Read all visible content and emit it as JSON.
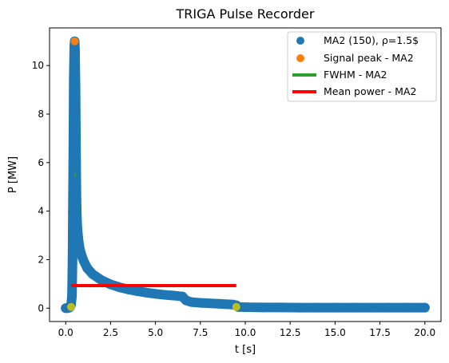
{
  "chart_data": {
    "type": "scatter",
    "title": "TRIGA Pulse Recorder",
    "xlabel": "t [s]",
    "ylabel": "P [MW]",
    "xlim": [
      -0.9,
      20.9
    ],
    "ylim": [
      -0.55,
      11.55
    ],
    "grid": false,
    "legend": {
      "placement": "top-right",
      "entries": [
        {
          "label": "MA2 (150), ρ=1.5$",
          "marker": "dot",
          "color": "#1f77b4"
        },
        {
          "label": "Signal peak - MA2",
          "marker": "dot",
          "color": "#ff7f0e"
        },
        {
          "label": "FWHM - MA2",
          "marker": "line",
          "color": "#2ca02c"
        },
        {
          "label": "Mean power - MA2",
          "marker": "line",
          "color": "#ff0000"
        }
      ]
    },
    "xticks": [
      "0.0",
      "2.5",
      "5.0",
      "7.5",
      "10.0",
      "12.5",
      "15.0",
      "17.5",
      "20.0"
    ],
    "xtick_values": [
      0,
      2.5,
      5,
      7.5,
      10,
      12.5,
      15,
      17.5,
      20
    ],
    "yticks": [
      "0",
      "2",
      "4",
      "6",
      "8",
      "10"
    ],
    "ytick_values": [
      0,
      2,
      4,
      6,
      8,
      10
    ],
    "series": [
      {
        "name": "MA2 (150), ρ=1.5$",
        "color": "#1f77b4",
        "x": [
          0.0,
          0.1,
          0.2,
          0.25,
          0.3,
          0.35,
          0.38,
          0.4,
          0.43,
          0.45,
          0.48,
          0.5,
          0.52,
          0.55,
          0.58,
          0.6,
          0.62,
          0.65,
          0.7,
          0.75,
          0.8,
          0.9,
          1.0,
          1.2,
          1.5,
          2.0,
          2.5,
          3.0,
          3.5,
          4.0,
          4.5,
          5.0,
          5.5,
          6.0,
          6.5,
          6.7,
          7.0,
          7.5,
          8.0,
          8.5,
          9.0,
          9.3,
          9.5,
          9.6,
          10.0,
          11.0,
          12.0,
          13.0,
          14.0,
          15.0,
          16.0,
          17.0,
          18.0,
          19.0,
          20.0
        ],
        "y": [
          0.0,
          0.0,
          0.02,
          0.05,
          0.15,
          0.5,
          2.0,
          4.0,
          7.0,
          9.5,
          10.8,
          11.0,
          10.6,
          9.0,
          6.0,
          4.5,
          3.8,
          3.3,
          2.9,
          2.6,
          2.4,
          2.15,
          1.95,
          1.65,
          1.4,
          1.15,
          0.98,
          0.86,
          0.77,
          0.7,
          0.64,
          0.59,
          0.55,
          0.52,
          0.48,
          0.32,
          0.25,
          0.22,
          0.2,
          0.18,
          0.16,
          0.15,
          0.12,
          0.05,
          0.04,
          0.03,
          0.03,
          0.02,
          0.02,
          0.02,
          0.02,
          0.02,
          0.02,
          0.02,
          0.02
        ]
      },
      {
        "name": "Signal peak - MA2",
        "color": "#ff7f0e",
        "x": [
          0.5
        ],
        "y": [
          11.0
        ]
      }
    ],
    "fwhm": {
      "name": "FWHM - MA2",
      "color": "#2ca02c",
      "x_start": 0.48,
      "x_end": 0.58,
      "y": 5.5
    },
    "mean_power": {
      "name": "Mean power - MA2",
      "color": "#ff0000",
      "x_start": 0.3,
      "x_end": 9.5,
      "y": 0.93
    },
    "integration_bounds": {
      "color": "#bcbd22",
      "x": [
        0.3,
        9.5
      ],
      "y": [
        0.05,
        0.05
      ]
    }
  }
}
